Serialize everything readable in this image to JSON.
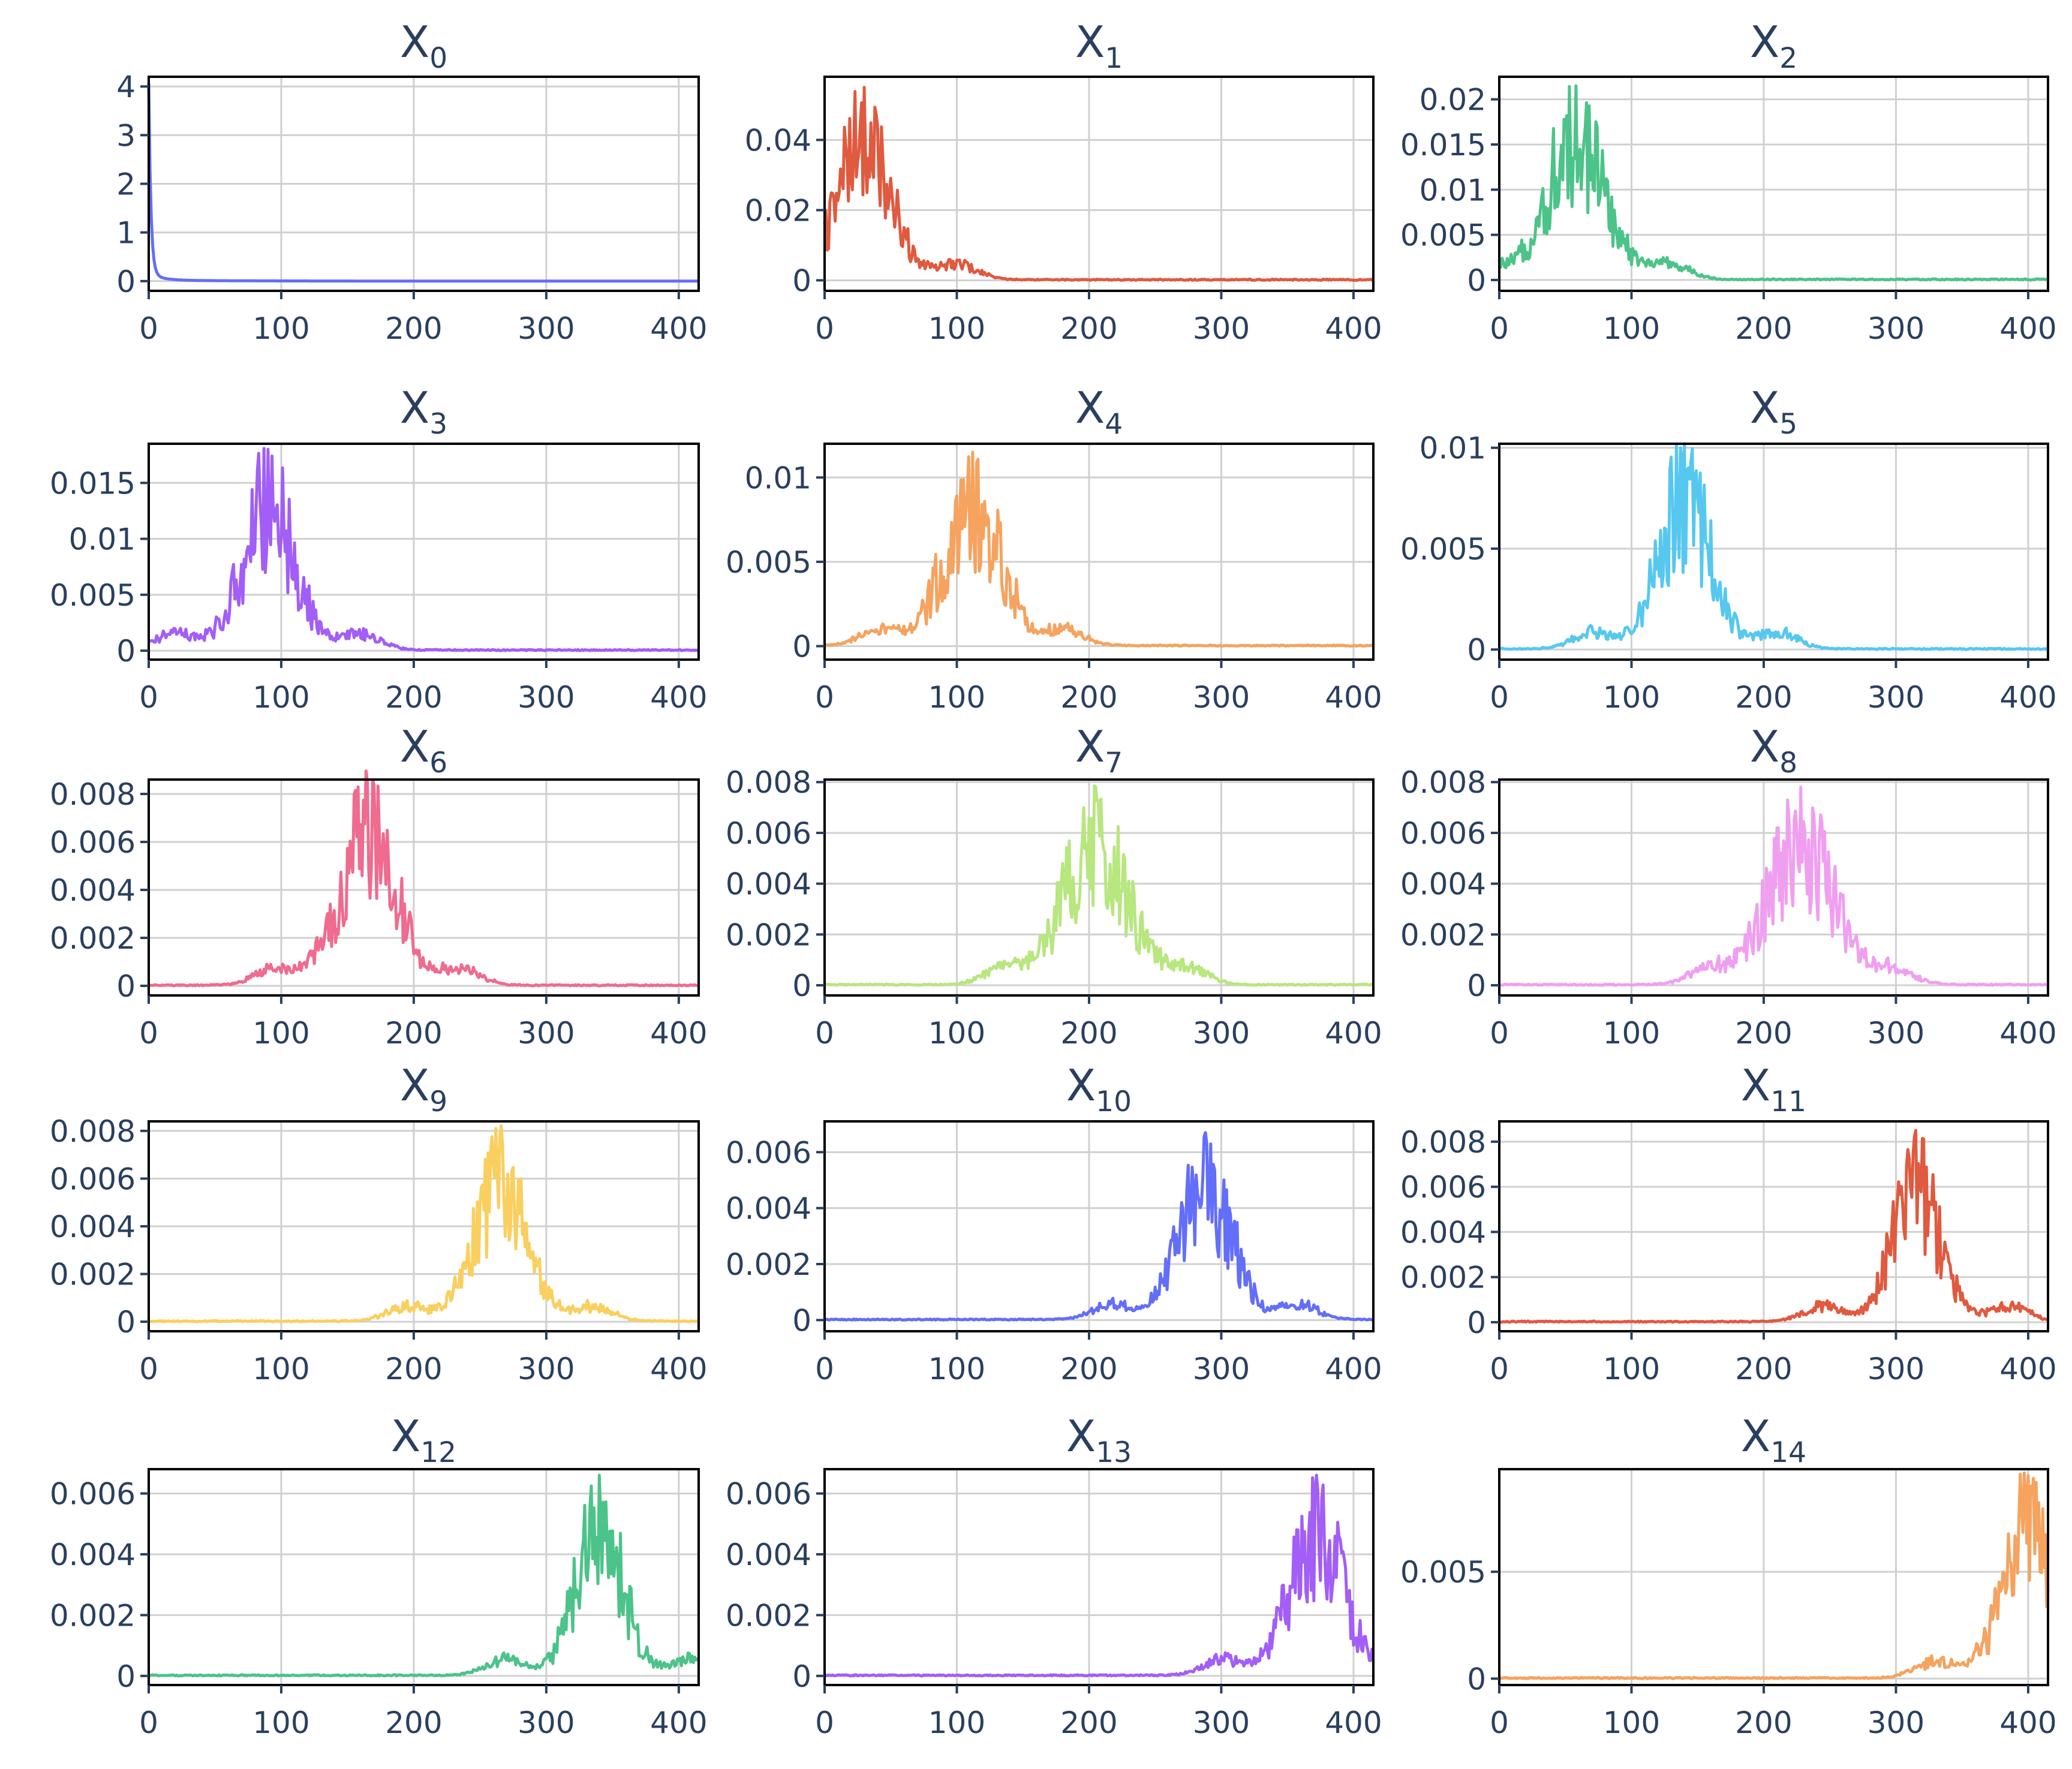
{
  "chart_data": [
    {
      "type": "line",
      "title": "X",
      "subscript": "0",
      "color": "#636efa",
      "xlim": [
        0,
        415
      ],
      "ylim": [
        -0.2,
        4.2
      ],
      "xticks": [
        0,
        100,
        200,
        300,
        400
      ],
      "xtick_labels": [
        "0",
        "100",
        "200",
        "300",
        "400"
      ],
      "yticks": [
        0,
        1,
        2,
        3,
        4
      ],
      "ytick_labels": [
        "0",
        "1",
        "2",
        "3",
        "4"
      ],
      "peak_x": 0,
      "peak_y": 3.9,
      "width": 12,
      "noise": 0.0,
      "series_profile": "decay"
    },
    {
      "type": "line",
      "title": "X",
      "subscript": "1",
      "color": "#e05a3f",
      "xlim": [
        0,
        415
      ],
      "ylim": [
        -0.003,
        0.058
      ],
      "xticks": [
        0,
        100,
        200,
        300,
        400
      ],
      "xtick_labels": [
        "0",
        "100",
        "200",
        "300",
        "400"
      ],
      "yticks": [
        0,
        0.02,
        0.04
      ],
      "ytick_labels": [
        "0",
        "0.02",
        "0.04"
      ],
      "peak_x": 30,
      "peak_y": 0.055,
      "width": 20,
      "noise": 0.6,
      "series_profile": "burst"
    },
    {
      "type": "line",
      "title": "X",
      "subscript": "2",
      "color": "#4cc389",
      "xlim": [
        0,
        415
      ],
      "ylim": [
        -0.0012,
        0.0225
      ],
      "xticks": [
        0,
        100,
        200,
        300,
        400
      ],
      "xtick_labels": [
        "0",
        "100",
        "200",
        "300",
        "400"
      ],
      "yticks": [
        0,
        0.005,
        0.01,
        0.015,
        0.02
      ],
      "ytick_labels": [
        "0",
        "0.005",
        "0.01",
        "0.015",
        "0.02"
      ],
      "peak_x": 58,
      "peak_y": 0.0215,
      "width": 22,
      "noise": 0.6,
      "series_profile": "burst"
    },
    {
      "type": "line",
      "title": "X",
      "subscript": "3",
      "color": "#a25ef6",
      "xlim": [
        0,
        415
      ],
      "ylim": [
        -0.0008,
        0.0185
      ],
      "xticks": [
        0,
        100,
        200,
        300,
        400
      ],
      "xtick_labels": [
        "0",
        "100",
        "200",
        "300",
        "400"
      ],
      "yticks": [
        0,
        0.005,
        0.01,
        0.015
      ],
      "ytick_labels": [
        "0",
        "0.005",
        "0.01",
        "0.015"
      ],
      "peak_x": 90,
      "peak_y": 0.018,
      "width": 20,
      "noise": 0.6,
      "series_profile": "burst"
    },
    {
      "type": "line",
      "title": "X",
      "subscript": "4",
      "color": "#f5a35f",
      "xlim": [
        0,
        415
      ],
      "ylim": [
        -0.0008,
        0.012
      ],
      "xticks": [
        0,
        100,
        200,
        300,
        400
      ],
      "xtick_labels": [
        "0",
        "100",
        "200",
        "300",
        "400"
      ],
      "yticks": [
        0,
        0.005,
        0.01
      ],
      "ytick_labels": [
        "0",
        "0.005",
        "0.01"
      ],
      "peak_x": 112,
      "peak_y": 0.0115,
      "width": 22,
      "noise": 0.6,
      "series_profile": "burst"
    },
    {
      "type": "line",
      "title": "X",
      "subscript": "5",
      "color": "#56c8ef",
      "xlim": [
        0,
        415
      ],
      "ylim": [
        -0.0005,
        0.0102
      ],
      "xticks": [
        0,
        100,
        200,
        300,
        400
      ],
      "xtick_labels": [
        "0",
        "100",
        "200",
        "300",
        "400"
      ],
      "yticks": [
        0,
        0.005,
        0.01
      ],
      "ytick_labels": [
        "0",
        "0.005",
        "0.01"
      ],
      "peak_x": 140,
      "peak_y": 0.0102,
      "width": 20,
      "noise": 0.6,
      "series_profile": "burst"
    },
    {
      "type": "line",
      "title": "X",
      "subscript": "6",
      "color": "#ef6b8f",
      "xlim": [
        0,
        415
      ],
      "ylim": [
        -0.0004,
        0.0086
      ],
      "xticks": [
        0,
        100,
        200,
        300,
        400
      ],
      "xtick_labels": [
        "0",
        "100",
        "200",
        "300",
        "400"
      ],
      "yticks": [
        0,
        0.002,
        0.004,
        0.006,
        0.008
      ],
      "ytick_labels": [
        "0",
        "0.002",
        "0.004",
        "0.006",
        "0.008"
      ],
      "peak_x": 165,
      "peak_y": 0.0085,
      "width": 22,
      "noise": 0.6,
      "series_profile": "burst"
    },
    {
      "type": "line",
      "title": "X",
      "subscript": "7",
      "color": "#b8e67f",
      "xlim": [
        0,
        415
      ],
      "ylim": [
        -0.0004,
        0.0081
      ],
      "xticks": [
        0,
        100,
        200,
        300,
        400
      ],
      "xtick_labels": [
        "0",
        "100",
        "200",
        "300",
        "400"
      ],
      "yticks": [
        0,
        0.002,
        0.004,
        0.006,
        0.008
      ],
      "ytick_labels": [
        "0",
        "0.002",
        "0.004",
        "0.006",
        "0.008"
      ],
      "peak_x": 205,
      "peak_y": 0.0078,
      "width": 25,
      "noise": 0.6,
      "series_profile": "burst"
    },
    {
      "type": "line",
      "title": "X",
      "subscript": "8",
      "color": "#f09ff0",
      "xlim": [
        0,
        415
      ],
      "ylim": [
        -0.0004,
        0.0081
      ],
      "xticks": [
        0,
        100,
        200,
        300,
        400
      ],
      "xtick_labels": [
        "0",
        "100",
        "200",
        "300",
        "400"
      ],
      "yticks": [
        0,
        0.002,
        0.004,
        0.006,
        0.008
      ],
      "ytick_labels": [
        "0",
        "0.002",
        "0.004",
        "0.006",
        "0.008"
      ],
      "peak_x": 228,
      "peak_y": 0.0078,
      "width": 25,
      "noise": 0.6,
      "series_profile": "burst"
    },
    {
      "type": "line",
      "title": "X",
      "subscript": "9",
      "color": "#f9cf5f",
      "xlim": [
        0,
        415
      ],
      "ylim": [
        -0.0004,
        0.0084
      ],
      "xticks": [
        0,
        100,
        200,
        300,
        400
      ],
      "xtick_labels": [
        "0",
        "100",
        "200",
        "300",
        "400"
      ],
      "yticks": [
        0,
        0.002,
        0.004,
        0.006,
        0.008
      ],
      "ytick_labels": [
        "0",
        "0.002",
        "0.004",
        "0.006",
        "0.008"
      ],
      "peak_x": 265,
      "peak_y": 0.0078,
      "width": 20,
      "noise": 0.6,
      "series_profile": "burst"
    },
    {
      "type": "line",
      "title": "X",
      "subscript": "10",
      "color": "#636efa",
      "xlim": [
        0,
        415
      ],
      "ylim": [
        -0.0004,
        0.0071
      ],
      "xticks": [
        0,
        100,
        200,
        300,
        400
      ],
      "xtick_labels": [
        "0",
        "100",
        "200",
        "300",
        "400"
      ],
      "yticks": [
        0,
        0.002,
        0.004,
        0.006
      ],
      "ytick_labels": [
        "0",
        "0.002",
        "0.004",
        "0.006"
      ],
      "peak_x": 288,
      "peak_y": 0.0067,
      "width": 20,
      "noise": 0.6,
      "series_profile": "burst"
    },
    {
      "type": "line",
      "title": "X",
      "subscript": "11",
      "color": "#e05a3f",
      "xlim": [
        0,
        415
      ],
      "ylim": [
        -0.0004,
        0.0089
      ],
      "xticks": [
        0,
        100,
        200,
        300,
        400
      ],
      "xtick_labels": [
        "0",
        "100",
        "200",
        "300",
        "400"
      ],
      "yticks": [
        0,
        0.002,
        0.004,
        0.006,
        0.008
      ],
      "ytick_labels": [
        "0",
        "0.002",
        "0.004",
        "0.006",
        "0.008"
      ],
      "peak_x": 315,
      "peak_y": 0.0085,
      "width": 18,
      "noise": 0.6,
      "series_profile": "burst"
    },
    {
      "type": "line",
      "title": "X",
      "subscript": "12",
      "color": "#4cc389",
      "xlim": [
        0,
        415
      ],
      "ylim": [
        -0.0003,
        0.0068
      ],
      "xticks": [
        0,
        100,
        200,
        300,
        400
      ],
      "xtick_labels": [
        "0",
        "100",
        "200",
        "300",
        "400"
      ],
      "yticks": [
        0,
        0.002,
        0.004,
        0.006
      ],
      "ytick_labels": [
        "0",
        "0.002",
        "0.004",
        "0.006"
      ],
      "peak_x": 340,
      "peak_y": 0.0066,
      "width": 18,
      "noise": 0.6,
      "series_profile": "burst"
    },
    {
      "type": "line",
      "title": "X",
      "subscript": "13",
      "color": "#a25ef6",
      "xlim": [
        0,
        415
      ],
      "ylim": [
        -0.0003,
        0.0068
      ],
      "xticks": [
        0,
        100,
        200,
        300,
        400
      ],
      "xtick_labels": [
        "0",
        "100",
        "200",
        "300",
        "400"
      ],
      "yticks": [
        0,
        0.002,
        0.004,
        0.006
      ],
      "ytick_labels": [
        "0",
        "0.002",
        "0.004",
        "0.006"
      ],
      "peak_x": 372,
      "peak_y": 0.0066,
      "width": 20,
      "noise": 0.6,
      "series_profile": "burst"
    },
    {
      "type": "line",
      "title": "X",
      "subscript": "14",
      "color": "#f5a35f",
      "xlim": [
        0,
        415
      ],
      "ylim": [
        -0.0003,
        0.0098
      ],
      "xticks": [
        0,
        100,
        200,
        300,
        400
      ],
      "xtick_labels": [
        "0",
        "100",
        "200",
        "300",
        "400"
      ],
      "yticks": [
        0,
        0.005
      ],
      "ytick_labels": [
        "0",
        "0.005"
      ],
      "peak_x": 400,
      "peak_y": 0.0095,
      "width": 20,
      "noise": 0.6,
      "series_profile": "burst"
    }
  ]
}
